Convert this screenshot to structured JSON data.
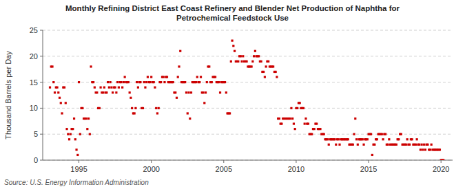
{
  "chart_data": {
    "type": "scatter",
    "title": "Monthly Refining District East Coast Refinery and Blender Net Production of Naphtha for\nPetrochemical Feedstock Use",
    "y_label": "Thousand Barrels per Day",
    "annotations": [
      "Source: U.S. Energy Information Administration"
    ],
    "color": "#cc0000",
    "marker": "square",
    "grid": true,
    "xlim": [
      1992.5,
      2020.8
    ],
    "ylim": [
      0,
      25
    ],
    "xticks": [
      1995,
      2000,
      2005,
      2010,
      2015,
      2020
    ],
    "yticks": [
      0,
      5,
      10,
      15,
      20,
      25
    ],
    "x": [
      1993.0,
      1993.083,
      1993.167,
      1993.25,
      1993.333,
      1993.417,
      1993.5,
      1993.583,
      1993.667,
      1993.75,
      1993.833,
      1993.917,
      1994.0,
      1994.083,
      1994.167,
      1994.25,
      1994.333,
      1994.417,
      1994.5,
      1994.583,
      1994.667,
      1994.75,
      1994.833,
      1994.917,
      1995.0,
      1995.083,
      1995.167,
      1995.25,
      1995.333,
      1995.417,
      1995.5,
      1995.583,
      1995.667,
      1995.75,
      1995.833,
      1995.917,
      1996.0,
      1996.083,
      1996.167,
      1996.25,
      1996.333,
      1996.417,
      1996.5,
      1996.583,
      1996.667,
      1996.75,
      1996.833,
      1996.917,
      1997.0,
      1997.083,
      1997.167,
      1997.25,
      1997.333,
      1997.417,
      1997.5,
      1997.583,
      1997.667,
      1997.75,
      1997.833,
      1997.917,
      1998.0,
      1998.083,
      1998.167,
      1998.25,
      1998.333,
      1998.417,
      1998.5,
      1998.583,
      1998.667,
      1998.75,
      1998.833,
      1998.917,
      1999.0,
      1999.083,
      1999.167,
      1999.25,
      1999.333,
      1999.417,
      1999.5,
      1999.583,
      1999.667,
      1999.75,
      1999.833,
      1999.917,
      2000.0,
      2000.083,
      2000.167,
      2000.25,
      2000.333,
      2000.417,
      2000.5,
      2000.583,
      2000.667,
      2000.75,
      2000.833,
      2000.917,
      2001.0,
      2001.083,
      2001.167,
      2001.25,
      2001.333,
      2001.417,
      2001.5,
      2001.583,
      2001.667,
      2001.75,
      2001.833,
      2001.917,
      2002.0,
      2002.083,
      2002.167,
      2002.25,
      2002.333,
      2002.417,
      2002.5,
      2002.583,
      2002.667,
      2002.75,
      2002.833,
      2002.917,
      2003.0,
      2003.083,
      2003.167,
      2003.25,
      2003.333,
      2003.417,
      2003.5,
      2003.583,
      2003.667,
      2003.75,
      2003.833,
      2003.917,
      2004.0,
      2004.083,
      2004.167,
      2004.25,
      2004.333,
      2004.417,
      2004.5,
      2004.583,
      2004.667,
      2004.75,
      2004.833,
      2004.917,
      2005.0,
      2005.083,
      2005.167,
      2005.25,
      2005.333,
      2005.417,
      2005.5,
      2005.583,
      2005.667,
      2005.75,
      2005.833,
      2005.917,
      2006.0,
      2006.083,
      2006.167,
      2006.25,
      2006.333,
      2006.417,
      2006.5,
      2006.583,
      2006.667,
      2006.75,
      2006.833,
      2006.917,
      2007.0,
      2007.083,
      2007.167,
      2007.25,
      2007.333,
      2007.417,
      2007.5,
      2007.583,
      2007.667,
      2007.75,
      2007.833,
      2007.917,
      2008.0,
      2008.083,
      2008.167,
      2008.25,
      2008.333,
      2008.417,
      2008.5,
      2008.583,
      2008.667,
      2008.75,
      2008.833,
      2008.917,
      2009.0,
      2009.083,
      2009.167,
      2009.25,
      2009.333,
      2009.417,
      2009.5,
      2009.583,
      2009.667,
      2009.75,
      2009.833,
      2009.917,
      2010.0,
      2010.083,
      2010.167,
      2010.25,
      2010.333,
      2010.417,
      2010.5,
      2010.583,
      2010.667,
      2010.75,
      2010.833,
      2010.917,
      2011.0,
      2011.083,
      2011.167,
      2011.25,
      2011.333,
      2011.417,
      2011.5,
      2011.583,
      2011.667,
      2011.75,
      2011.833,
      2011.917,
      2012.0,
      2012.083,
      2012.167,
      2012.25,
      2012.333,
      2012.417,
      2012.5,
      2012.583,
      2012.667,
      2012.75,
      2012.833,
      2012.917,
      2013.0,
      2013.083,
      2013.167,
      2013.25,
      2013.333,
      2013.417,
      2013.5,
      2013.583,
      2013.667,
      2013.75,
      2013.833,
      2013.917,
      2014.0,
      2014.083,
      2014.167,
      2014.25,
      2014.333,
      2014.417,
      2014.5,
      2014.583,
      2014.667,
      2014.75,
      2014.833,
      2014.917,
      2015.0,
      2015.083,
      2015.167,
      2015.25,
      2015.333,
      2015.417,
      2015.5,
      2015.583,
      2015.667,
      2015.75,
      2015.833,
      2015.917,
      2016.0,
      2016.083,
      2016.167,
      2016.25,
      2016.333,
      2016.417,
      2016.5,
      2016.583,
      2016.667,
      2016.75,
      2016.833,
      2016.917,
      2017.0,
      2017.083,
      2017.167,
      2017.25,
      2017.333,
      2017.417,
      2017.5,
      2017.583,
      2017.667,
      2017.75,
      2017.833,
      2017.917,
      2018.0,
      2018.083,
      2018.167,
      2018.25,
      2018.333,
      2018.417,
      2018.5,
      2018.583,
      2018.667,
      2018.75,
      2018.833,
      2018.917,
      2019.0,
      2019.083,
      2019.167,
      2019.25,
      2019.333,
      2019.417,
      2019.5,
      2019.583,
      2019.667,
      2019.75,
      2019.833,
      2019.917,
      2020.0,
      2020.083,
      2020.167
    ],
    "values": [
      14,
      18,
      18,
      15,
      13,
      14,
      14,
      13,
      12,
      11,
      9,
      14,
      14,
      11,
      6,
      5,
      4,
      5,
      6,
      6,
      8,
      4,
      2,
      1,
      15,
      5,
      10,
      10,
      8,
      8,
      8,
      6,
      8,
      5,
      18,
      15,
      15,
      14,
      13,
      13,
      10,
      10,
      14,
      13,
      13,
      14,
      13,
      13,
      15,
      14,
      15,
      14,
      13,
      14,
      14,
      13,
      15,
      14,
      15,
      15,
      14,
      15,
      16,
      15,
      15,
      15,
      13,
      12,
      10,
      9,
      9,
      10,
      15,
      14,
      15,
      15,
      10,
      10,
      15,
      14,
      15,
      16,
      15,
      15,
      16,
      15,
      15,
      14,
      10,
      9,
      10,
      15,
      15,
      16,
      16,
      15,
      16,
      16,
      15,
      15,
      15,
      15,
      15,
      13,
      13,
      12,
      16,
      18,
      21,
      15,
      15,
      15,
      15,
      13,
      9,
      13,
      8,
      13,
      15,
      15,
      15,
      15,
      16,
      15,
      15,
      16,
      13,
      13,
      11,
      13,
      15,
      18,
      18,
      15,
      15,
      16,
      16,
      16,
      15,
      15,
      15,
      13,
      15,
      15,
      15,
      15,
      13,
      9,
      9,
      9,
      19,
      23,
      22,
      21,
      19,
      19,
      19,
      20,
      20,
      19,
      20,
      19,
      19,
      19,
      18,
      18,
      18,
      18,
      19,
      20,
      21,
      20,
      20,
      20,
      19,
      19,
      17,
      17,
      16,
      18,
      19,
      19,
      18,
      18,
      18,
      18,
      17,
      17,
      16,
      8,
      8,
      7,
      7,
      8,
      8,
      8,
      8,
      8,
      8,
      8,
      10,
      8,
      7,
      6,
      10,
      10,
      11,
      11,
      10,
      10,
      10,
      7,
      8,
      7,
      7,
      5,
      5,
      5,
      6,
      6,
      7,
      7,
      6,
      6,
      6,
      5,
      5,
      5,
      4,
      4,
      4,
      3,
      4,
      4,
      4,
      4,
      4,
      3,
      4,
      4,
      3,
      4,
      4,
      4,
      4,
      4,
      4,
      4,
      3,
      3,
      3,
      3,
      5,
      8,
      4,
      3,
      4,
      4,
      4,
      4,
      3,
      4,
      4,
      4,
      5,
      5,
      5,
      1,
      3,
      3,
      4,
      4,
      5,
      5,
      5,
      5,
      4,
      5,
      5,
      3,
      3,
      4,
      3,
      3,
      3,
      3,
      3,
      3,
      4,
      4,
      5,
      5,
      3,
      3,
      3,
      3,
      4,
      3,
      3,
      4,
      4,
      3,
      3,
      3,
      4,
      3,
      3,
      2,
      3,
      2,
      3,
      2,
      3,
      3,
      2,
      2,
      3,
      2,
      2,
      2,
      2,
      2,
      2,
      2,
      0,
      0,
      0
    ]
  }
}
